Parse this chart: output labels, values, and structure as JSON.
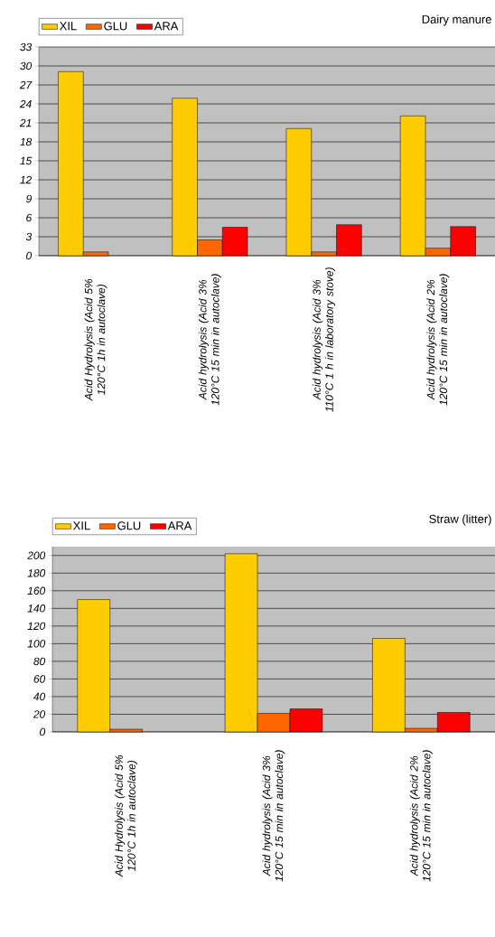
{
  "chart_data": [
    {
      "type": "bar",
      "title": "Dairy manure",
      "categories": [
        "Acid Hydrolysis (Acid 5% 120°C 1h in autoclave)",
        "Acid hydrolysis (Acid 3% 120°C 15 min in autoclave)",
        "Acid hydrolysis (Acid 3% 110°C 1 h in laboratory stove)",
        "Acid hydrolysis (Acid 2% 120°C 15 min in autoclave)"
      ],
      "series": [
        {
          "name": "XIL",
          "color": "#ffcc00",
          "values": [
            29.1,
            24.9,
            20.1,
            22.1
          ]
        },
        {
          "name": "GLU",
          "color": "#ff6600",
          "values": [
            0.6,
            2.5,
            0.6,
            1.2
          ]
        },
        {
          "name": "ARA",
          "color": "#ff0000",
          "values": [
            null,
            4.5,
            4.9,
            4.6
          ]
        }
      ],
      "ylim": [
        0,
        33
      ],
      "yticks": [
        0,
        3,
        6,
        9,
        12,
        15,
        18,
        21,
        24,
        27,
        30,
        33
      ],
      "grid": "y",
      "legend": "top left"
    },
    {
      "type": "bar",
      "title": "Straw (litter)",
      "categories": [
        "Acid Hydrolysis (Acid 5% 120°C 1h in autoclave)",
        "Acid hydrolysis (Acid 3% 120°C 15 min in autoclave)",
        "Acid hydrolysis (Acid 2% 120°C 15 min in autoclave)"
      ],
      "series": [
        {
          "name": "XIL",
          "color": "#ffcc00",
          "values": [
            150,
            202,
            106
          ]
        },
        {
          "name": "GLU",
          "color": "#ff6600",
          "values": [
            3,
            21,
            4
          ]
        },
        {
          "name": "ARA",
          "color": "#ff0000",
          "values": [
            null,
            26,
            22
          ]
        }
      ],
      "ylim": [
        0,
        210
      ],
      "yticks": [
        0,
        20,
        40,
        60,
        80,
        100,
        120,
        140,
        160,
        180,
        200
      ],
      "grid": "y",
      "legend": "top left"
    }
  ]
}
